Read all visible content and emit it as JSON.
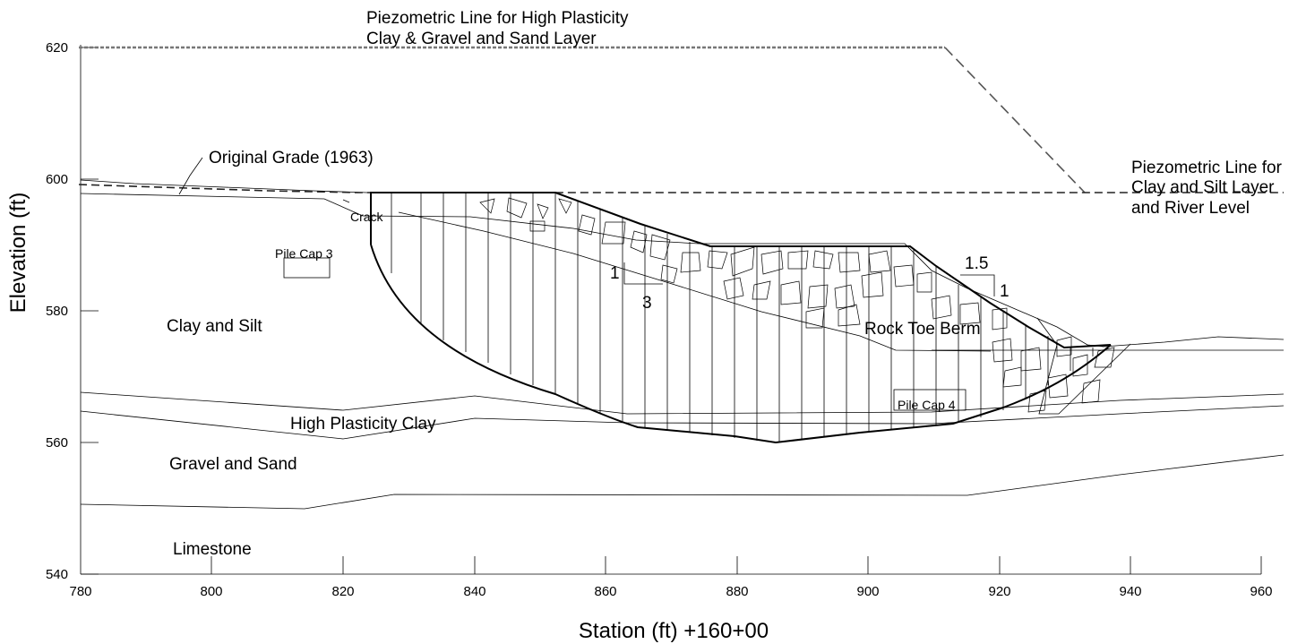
{
  "axes": {
    "x_title": "Station (ft) +160+00",
    "y_title": "Elevation (ft)",
    "x_ticks": [
      "780",
      "800",
      "820",
      "840",
      "860",
      "880",
      "900",
      "920",
      "940",
      "960"
    ],
    "y_ticks": [
      "540",
      "560",
      "580",
      "600",
      "620"
    ]
  },
  "labels": {
    "piezo_high_line1": "Piezometric Line for High Plasticity",
    "piezo_high_line2": "Clay & Gravel and Sand Layer",
    "piezo_clay_line1": "Piezometric Line for",
    "piezo_clay_line2": "Clay and Silt Layer",
    "piezo_clay_line3": "and River Level",
    "original_grade": "Original Grade (1963)",
    "crack": "Crack",
    "pile_cap_3": "Pile Cap 3",
    "pile_cap_4": "Pile Cap 4",
    "clay_silt": "Clay and Silt",
    "high_plasticity_clay": "High Plasticity Clay",
    "gravel_sand": "Gravel and Sand",
    "limestone": "Limestone",
    "rock_toe_berm": "Rock Toe Berm",
    "slope_1_rise": "1",
    "slope_1_run": "3",
    "slope_2_run": "1.5",
    "slope_2_rise": "1"
  }
}
